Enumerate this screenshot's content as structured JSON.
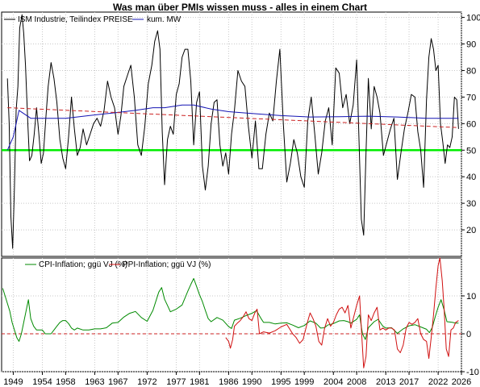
{
  "chart_title": "Was man über PMIs wissen muss - alles in einem Chart",
  "chart_data": [
    {
      "type": "line",
      "legend_position": "top-left",
      "xlim": [
        1947.0,
        2026.0
      ],
      "ylim": [
        10,
        102
      ],
      "y_ticks": [
        20,
        30,
        40,
        50,
        60,
        70,
        80,
        90,
        100
      ],
      "grid": true,
      "series": [
        {
          "name": "ISM Industrie, Teilindex PREISE",
          "color": "#000000",
          "x": [
            1948.0,
            1948.3,
            1948.6,
            1948.9,
            1949.2,
            1949.5,
            1949.8,
            1950.1,
            1950.5,
            1950.8,
            1951.1,
            1951.5,
            1951.8,
            1952.2,
            1952.6,
            1953.0,
            1953.4,
            1953.8,
            1954.2,
            1954.6,
            1955.0,
            1955.5,
            1956.0,
            1956.5,
            1957.0,
            1957.5,
            1958.0,
            1958.5,
            1959.0,
            1959.5,
            1960.0,
            1960.5,
            1961.0,
            1961.6,
            1962.2,
            1962.8,
            1963.4,
            1964.0,
            1964.6,
            1965.2,
            1965.8,
            1966.4,
            1967.0,
            1967.5,
            1968.0,
            1968.6,
            1969.2,
            1969.8,
            1970.4,
            1971.0,
            1971.6,
            1972.2,
            1972.8,
            1973.3,
            1973.8,
            1974.2,
            1974.6,
            1975.0,
            1975.5,
            1976.0,
            1976.5,
            1977.0,
            1977.5,
            1978.0,
            1978.5,
            1979.0,
            1979.5,
            1980.0,
            1980.5,
            1981.0,
            1981.5,
            1982.0,
            1982.5,
            1983.0,
            1983.5,
            1984.0,
            1984.5,
            1985.0,
            1985.5,
            1986.0,
            1986.5,
            1987.0,
            1987.6,
            1988.2,
            1988.8,
            1989.4,
            1990.0,
            1990.6,
            1991.2,
            1991.8,
            1992.4,
            1993.0,
            1993.6,
            1994.2,
            1994.8,
            1995.4,
            1996.0,
            1996.6,
            1997.2,
            1997.8,
            1998.4,
            1999.0,
            1999.6,
            2000.2,
            2000.8,
            2001.4,
            2002.0,
            2002.6,
            2003.2,
            2003.8,
            2004.4,
            2005.0,
            2005.6,
            2006.2,
            2006.8,
            2007.4,
            2008.0,
            2008.4,
            2008.8,
            2009.2,
            2009.6,
            2010.0,
            2010.5,
            2011.0,
            2011.5,
            2012.0,
            2012.6,
            2013.2,
            2013.8,
            2014.4,
            2015.0,
            2015.6,
            2016.2,
            2016.8,
            2017.4,
            2018.0,
            2018.5,
            2019.0,
            2019.5,
            2020.0,
            2020.4,
            2020.8,
            2021.2,
            2021.6,
            2022.0,
            2022.4,
            2022.8,
            2023.2,
            2023.6,
            2024.0,
            2024.4,
            2024.8,
            2025.2,
            2025.5
          ],
          "values": [
            77,
            60,
            25,
            13,
            36,
            65,
            74,
            96,
            101,
            94,
            82,
            60,
            46,
            48,
            56,
            66,
            56,
            45,
            49,
            62,
            74,
            83,
            77,
            68,
            54,
            47,
            43,
            55,
            70,
            58,
            48,
            51,
            58,
            52,
            56,
            60,
            62,
            59,
            65,
            76,
            70,
            66,
            56,
            63,
            74,
            78,
            82,
            70,
            52,
            48,
            59,
            75,
            82,
            91,
            95,
            88,
            57,
            37,
            54,
            59,
            56,
            71,
            75,
            85,
            88,
            88,
            76,
            52,
            68,
            72,
            44,
            35,
            44,
            60,
            68,
            69,
            52,
            44,
            49,
            41,
            56,
            65,
            80,
            76,
            74,
            59,
            47,
            61,
            43,
            43,
            56,
            64,
            61,
            76,
            88,
            60,
            38,
            45,
            54,
            49,
            40,
            36,
            61,
            70,
            56,
            41,
            49,
            61,
            66,
            52,
            81,
            79,
            66,
            71,
            60,
            67,
            84,
            54,
            24,
            18,
            49,
            77,
            58,
            74,
            70,
            64,
            48,
            53,
            58,
            62,
            39,
            49,
            58,
            64,
            71,
            70,
            57,
            50,
            36,
            69,
            85,
            92,
            88,
            80,
            82,
            60,
            53,
            45,
            52,
            51,
            55,
            70,
            69,
            58
          ]
        },
        {
          "name": "kum. MW",
          "color": "#1414b4",
          "x": [
            1948,
            1949,
            1950,
            1952,
            1955,
            1958,
            1962,
            1966,
            1970,
            1973,
            1975,
            1978,
            1980,
            1983,
            1986,
            1990,
            1995,
            2000,
            2005,
            2010,
            2015,
            2020,
            2024,
            2025.5
          ],
          "values": [
            50,
            55,
            65,
            62,
            62,
            62,
            63,
            64,
            65,
            66,
            66,
            67,
            67,
            65.5,
            64.5,
            63.8,
            63,
            62.5,
            62.6,
            62.8,
            62.5,
            62,
            62,
            62
          ]
        }
      ],
      "reference_lines": [
        {
          "kind": "horizontal",
          "y": 50,
          "color": "#00ee00"
        },
        {
          "kind": "trend",
          "from": [
            1948,
            66
          ],
          "to": [
            2025.5,
            58.5
          ],
          "color": "#cc2222",
          "style": "dashed"
        }
      ]
    },
    {
      "type": "line",
      "legend_position": "top-left",
      "xlim": [
        1947.0,
        2026.0
      ],
      "ylim": [
        -10,
        20
      ],
      "y_ticks": [
        -10,
        0,
        10
      ],
      "x_ticks": [
        1949,
        1954,
        1958,
        1963,
        1967,
        1972,
        1977,
        1981,
        1986,
        1990,
        1995,
        1999,
        2004,
        2008,
        2013,
        2017,
        2022,
        2026
      ],
      "grid": true,
      "series": [
        {
          "name": "CPI-Inflation; ggü VJ (%)",
          "color": "#008a00",
          "x": [
            1947.2,
            1947.6,
            1948.0,
            1948.4,
            1948.8,
            1949.2,
            1949.6,
            1950.0,
            1950.4,
            1950.8,
            1951.2,
            1951.6,
            1952.0,
            1952.5,
            1953.0,
            1953.5,
            1954.0,
            1954.5,
            1955.0,
            1955.5,
            1956.0,
            1956.5,
            1957.0,
            1957.5,
            1958.0,
            1958.5,
            1959.0,
            1959.5,
            1960.0,
            1961.0,
            1962.0,
            1963.0,
            1964.0,
            1965.0,
            1966.0,
            1967.0,
            1968.0,
            1969.0,
            1970.0,
            1971.0,
            1972.0,
            1973.0,
            1974.0,
            1974.5,
            1975.0,
            1975.5,
            1976.0,
            1977.0,
            1978.0,
            1979.0,
            1979.5,
            1980.0,
            1980.5,
            1981.0,
            1981.5,
            1982.0,
            1982.5,
            1983.0,
            1984.0,
            1985.0,
            1986.0,
            1986.5,
            1987.0,
            1988.0,
            1989.0,
            1990.0,
            1990.8,
            1991.5,
            1992.0,
            1993.0,
            1994.0,
            1995.0,
            1996.0,
            1997.0,
            1998.0,
            1999.0,
            2000.0,
            2001.0,
            2001.8,
            2002.5,
            2003.0,
            2004.0,
            2005.0,
            2005.8,
            2006.5,
            2007.0,
            2008.0,
            2008.5,
            2009.0,
            2009.5,
            2010.0,
            2011.0,
            2011.7,
            2012.5,
            2013.0,
            2014.0,
            2015.0,
            2016.0,
            2017.0,
            2018.0,
            2019.0,
            2020.0,
            2020.5,
            2021.0,
            2021.5,
            2022.0,
            2022.5,
            2023.0,
            2023.5,
            2024.0,
            2024.5,
            2025.0,
            2025.5
          ],
          "values": [
            12,
            10,
            8,
            6,
            3,
            1,
            -1,
            -2,
            0,
            3,
            6,
            9,
            4,
            2,
            1,
            1,
            1,
            0,
            0,
            0,
            1,
            2,
            3,
            3.5,
            3.5,
            2.7,
            1.5,
            1.0,
            1.5,
            1.0,
            1.0,
            1.3,
            1.3,
            1.6,
            2.8,
            3.0,
            4.4,
            5.4,
            5.9,
            4.3,
            3.3,
            6.2,
            11.0,
            12.2,
            9.1,
            7.5,
            5.8,
            6.5,
            7.6,
            11.3,
            13.0,
            14.6,
            12.5,
            10.3,
            8.5,
            6.2,
            4.0,
            3.2,
            4.3,
            3.6,
            1.9,
            1.4,
            3.6,
            4.1,
            4.8,
            5.4,
            6.1,
            4.2,
            3.0,
            3.0,
            2.6,
            2.8,
            2.9,
            2.3,
            1.6,
            2.2,
            3.4,
            2.8,
            1.5,
            1.6,
            2.3,
            2.7,
            3.4,
            3.5,
            3.2,
            2.8,
            3.8,
            5.0,
            0.0,
            -1.5,
            1.6,
            3.2,
            3.8,
            2.0,
            1.5,
            1.6,
            0.1,
            1.3,
            2.1,
            2.4,
            1.8,
            1.2,
            0.3,
            1.7,
            4.5,
            7.0,
            9.0,
            6.4,
            3.2,
            3.1,
            3.0,
            2.8,
            2.8
          ]
        },
        {
          "name": "PPI-Inflation; ggü VJ (%)",
          "color": "#d01010",
          "x": [
            1985.5,
            1986.0,
            1986.3,
            1986.7,
            1987.0,
            1987.5,
            1988.0,
            1988.5,
            1989.0,
            1989.5,
            1990.0,
            1990.5,
            1990.9,
            1991.3,
            1992.0,
            1993.0,
            1994.0,
            1995.0,
            1996.0,
            1997.0,
            1997.6,
            1998.2,
            1998.8,
            1999.5,
            2000.0,
            2000.5,
            2001.0,
            2001.5,
            2002.0,
            2002.5,
            2003.0,
            2003.5,
            2004.0,
            2004.5,
            2005.0,
            2005.5,
            2006.0,
            2006.5,
            2007.0,
            2007.5,
            2008.0,
            2008.5,
            2008.8,
            2009.2,
            2009.6,
            2010.0,
            2010.5,
            2011.0,
            2011.5,
            2012.0,
            2012.5,
            2013.0,
            2013.5,
            2014.0,
            2014.5,
            2015.0,
            2015.5,
            2016.0,
            2016.5,
            2017.0,
            2017.5,
            2018.0,
            2018.5,
            2019.0,
            2019.5,
            2020.0,
            2020.4,
            2020.8,
            2021.2,
            2021.6,
            2022.0,
            2022.3,
            2022.7,
            2023.0,
            2023.4,
            2023.8,
            2024.2,
            2024.6,
            2025.0,
            2025.5
          ],
          "values": [
            -1.0,
            -2.0,
            -3.8,
            -1.5,
            2.0,
            2.8,
            3.5,
            4.5,
            5.8,
            4.0,
            3.5,
            5.5,
            6.5,
            0.0,
            0.5,
            0.2,
            0.8,
            1.8,
            2.5,
            0.0,
            -1.0,
            -2.5,
            -1.5,
            2.8,
            5.5,
            4.0,
            2.0,
            -2.0,
            -3.0,
            1.5,
            4.0,
            2.0,
            3.0,
            5.0,
            6.5,
            7.0,
            5.5,
            7.5,
            1.5,
            4.5,
            7.5,
            10.0,
            1.5,
            -9.0,
            -6.0,
            5.0,
            3.5,
            5.5,
            7.0,
            1.0,
            1.5,
            1.0,
            1.5,
            1.5,
            1.0,
            -4.0,
            -5.0,
            -3.0,
            1.5,
            3.0,
            2.5,
            3.0,
            4.0,
            0.0,
            -1.5,
            -2.0,
            -6.5,
            -1.0,
            5.0,
            12.0,
            18.0,
            20.0,
            14.0,
            7.0,
            -4.0,
            -6.0,
            1.0,
            1.5,
            3.0,
            3.5
          ]
        }
      ],
      "reference_lines": [
        {
          "kind": "horizontal",
          "y": 0,
          "color": "#cc2222",
          "style": "dashed"
        }
      ]
    }
  ]
}
